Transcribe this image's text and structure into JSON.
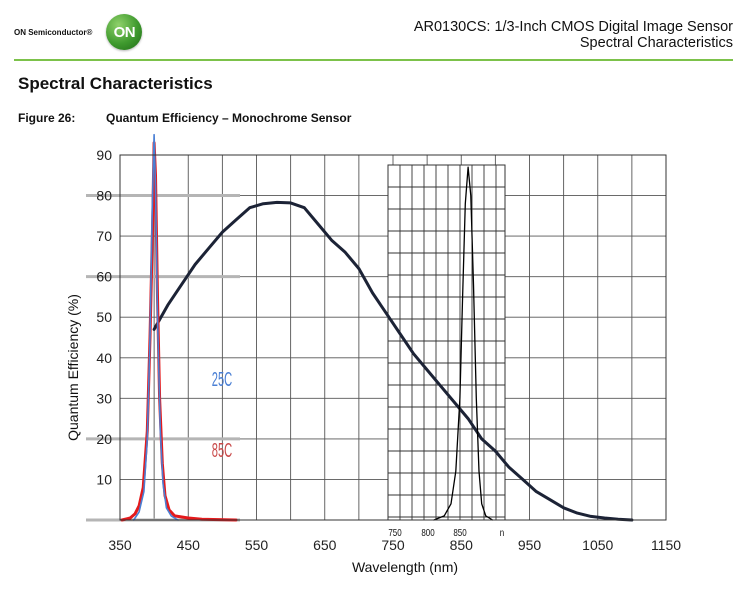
{
  "header": {
    "brand_text": "ON Semiconductor®",
    "logo_text": "ON",
    "doc_title": "AR0130CS:  1/3-Inch CMOS Digital Image Sensor",
    "doc_subtitle": "Spectral Characteristics"
  },
  "section_title": "Spectral Characteristics",
  "figure": {
    "label": "Figure 26:",
    "caption": "Quantum Efficiency – Monochrome Sensor"
  },
  "colors": {
    "accent_green": "#7cc24a",
    "qe_curve": "#1c2336",
    "led_red": "#e41a1c",
    "led_blue": "#4a7fd4",
    "label_25c": "#4a7fd4",
    "label_85c": "#c94a4a"
  },
  "chart_data": {
    "type": "line",
    "title": "",
    "xlabel": "Wavelength (nm)",
    "ylabel": "Quantum Efficiency (%)",
    "xlim": [
      350,
      1150
    ],
    "ylim": [
      0,
      90
    ],
    "x_ticks": [
      "350",
      "450",
      "550",
      "650",
      "750",
      "850",
      "950",
      "1050",
      "1150"
    ],
    "y_ticks": [
      "10",
      "20",
      "30",
      "40",
      "50",
      "60",
      "70",
      "80",
      "90"
    ],
    "grid": true,
    "series": [
      {
        "key": "qe",
        "points": [
          [
            400,
            47
          ],
          [
            420,
            53
          ],
          [
            440,
            58
          ],
          [
            460,
            63
          ],
          [
            480,
            67
          ],
          [
            500,
            71
          ],
          [
            520,
            74
          ],
          [
            540,
            77
          ],
          [
            560,
            78
          ],
          [
            580,
            78.3
          ],
          [
            600,
            78.2
          ],
          [
            620,
            77
          ],
          [
            640,
            73
          ],
          [
            660,
            69
          ],
          [
            680,
            66
          ],
          [
            700,
            62
          ],
          [
            720,
            56
          ],
          [
            740,
            51
          ],
          [
            760,
            46
          ],
          [
            780,
            41
          ],
          [
            800,
            37
          ],
          [
            820,
            33
          ],
          [
            840,
            29
          ],
          [
            860,
            25
          ],
          [
            880,
            20
          ],
          [
            900,
            17
          ],
          [
            920,
            13
          ],
          [
            940,
            10
          ],
          [
            960,
            7
          ],
          [
            980,
            5
          ],
          [
            1000,
            3
          ],
          [
            1020,
            1.7
          ],
          [
            1040,
            0.9
          ],
          [
            1060,
            0.5
          ],
          [
            1080,
            0.2
          ],
          [
            1100,
            0
          ]
        ]
      },
      {
        "key": "ir_led",
        "points": [
          [
            810,
            0
          ],
          [
            825,
            1
          ],
          [
            835,
            4
          ],
          [
            842,
            12
          ],
          [
            848,
            30
          ],
          [
            852,
            55
          ],
          [
            856,
            78
          ],
          [
            860,
            87
          ],
          [
            864,
            80
          ],
          [
            868,
            58
          ],
          [
            872,
            30
          ],
          [
            876,
            12
          ],
          [
            880,
            4
          ],
          [
            886,
            1
          ],
          [
            896,
            0
          ]
        ]
      },
      {
        "key": "led_85c",
        "points": [
          [
            353,
            0
          ],
          [
            365,
            0.5
          ],
          [
            372,
            1.5
          ],
          [
            378,
            3.5
          ],
          [
            384,
            8
          ],
          [
            390,
            22
          ],
          [
            394,
            45
          ],
          [
            398,
            75
          ],
          [
            400,
            93
          ],
          [
            402,
            85
          ],
          [
            405,
            55
          ],
          [
            408,
            30
          ],
          [
            412,
            14
          ],
          [
            416,
            6
          ],
          [
            422,
            2.5
          ],
          [
            430,
            1
          ],
          [
            450,
            0.5
          ],
          [
            470,
            0.2
          ],
          [
            520,
            0
          ]
        ]
      },
      {
        "key": "led_25c",
        "points": [
          [
            370,
            0
          ],
          [
            378,
            2
          ],
          [
            385,
            7
          ],
          [
            390,
            20
          ],
          [
            394,
            45
          ],
          [
            397,
            75
          ],
          [
            400,
            95
          ],
          [
            402,
            82
          ],
          [
            405,
            50
          ],
          [
            409,
            22
          ],
          [
            413,
            9
          ],
          [
            418,
            3
          ],
          [
            425,
            1
          ],
          [
            435,
            0
          ]
        ]
      }
    ],
    "annotations": {
      "label_25c": "25C",
      "label_85c": "85C",
      "inset_ticks": [
        "750",
        "800",
        "850",
        "n"
      ]
    }
  }
}
